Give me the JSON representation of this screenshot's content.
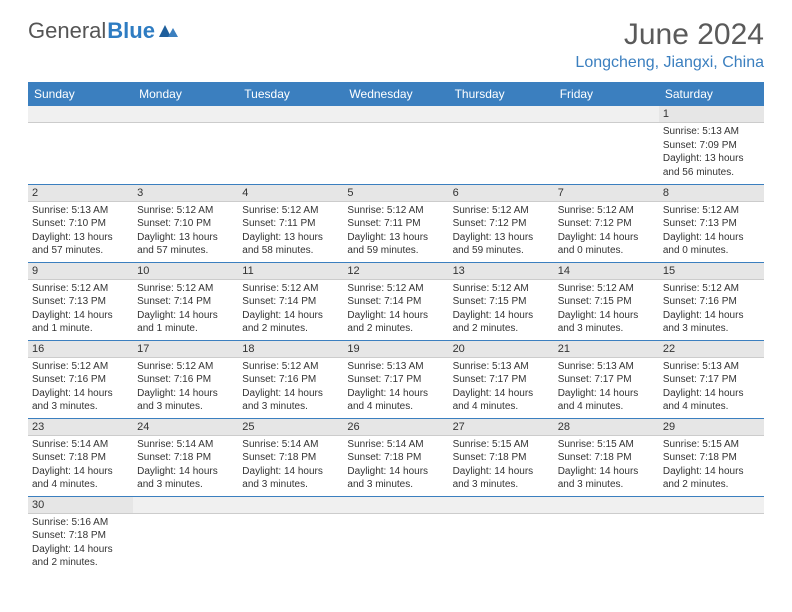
{
  "brand": {
    "part1": "General",
    "part2": "Blue"
  },
  "header": {
    "month_title": "June 2024",
    "location": "Longcheng, Jiangxi, China"
  },
  "colors": {
    "accent": "#3b7fbf",
    "header_text": "#ffffff",
    "daynum_bg": "#e6e6e6",
    "border": "#3b7fbf",
    "title_color": "#5a5a5a",
    "body_text": "#333333"
  },
  "day_headers": [
    "Sunday",
    "Monday",
    "Tuesday",
    "Wednesday",
    "Thursday",
    "Friday",
    "Saturday"
  ],
  "weeks": [
    [
      null,
      null,
      null,
      null,
      null,
      null,
      {
        "n": "1",
        "sr": "Sunrise: 5:13 AM",
        "ss": "Sunset: 7:09 PM",
        "dl": "Daylight: 13 hours and 56 minutes."
      }
    ],
    [
      {
        "n": "2",
        "sr": "Sunrise: 5:13 AM",
        "ss": "Sunset: 7:10 PM",
        "dl": "Daylight: 13 hours and 57 minutes."
      },
      {
        "n": "3",
        "sr": "Sunrise: 5:12 AM",
        "ss": "Sunset: 7:10 PM",
        "dl": "Daylight: 13 hours and 57 minutes."
      },
      {
        "n": "4",
        "sr": "Sunrise: 5:12 AM",
        "ss": "Sunset: 7:11 PM",
        "dl": "Daylight: 13 hours and 58 minutes."
      },
      {
        "n": "5",
        "sr": "Sunrise: 5:12 AM",
        "ss": "Sunset: 7:11 PM",
        "dl": "Daylight: 13 hours and 59 minutes."
      },
      {
        "n": "6",
        "sr": "Sunrise: 5:12 AM",
        "ss": "Sunset: 7:12 PM",
        "dl": "Daylight: 13 hours and 59 minutes."
      },
      {
        "n": "7",
        "sr": "Sunrise: 5:12 AM",
        "ss": "Sunset: 7:12 PM",
        "dl": "Daylight: 14 hours and 0 minutes."
      },
      {
        "n": "8",
        "sr": "Sunrise: 5:12 AM",
        "ss": "Sunset: 7:13 PM",
        "dl": "Daylight: 14 hours and 0 minutes."
      }
    ],
    [
      {
        "n": "9",
        "sr": "Sunrise: 5:12 AM",
        "ss": "Sunset: 7:13 PM",
        "dl": "Daylight: 14 hours and 1 minute."
      },
      {
        "n": "10",
        "sr": "Sunrise: 5:12 AM",
        "ss": "Sunset: 7:14 PM",
        "dl": "Daylight: 14 hours and 1 minute."
      },
      {
        "n": "11",
        "sr": "Sunrise: 5:12 AM",
        "ss": "Sunset: 7:14 PM",
        "dl": "Daylight: 14 hours and 2 minutes."
      },
      {
        "n": "12",
        "sr": "Sunrise: 5:12 AM",
        "ss": "Sunset: 7:14 PM",
        "dl": "Daylight: 14 hours and 2 minutes."
      },
      {
        "n": "13",
        "sr": "Sunrise: 5:12 AM",
        "ss": "Sunset: 7:15 PM",
        "dl": "Daylight: 14 hours and 2 minutes."
      },
      {
        "n": "14",
        "sr": "Sunrise: 5:12 AM",
        "ss": "Sunset: 7:15 PM",
        "dl": "Daylight: 14 hours and 3 minutes."
      },
      {
        "n": "15",
        "sr": "Sunrise: 5:12 AM",
        "ss": "Sunset: 7:16 PM",
        "dl": "Daylight: 14 hours and 3 minutes."
      }
    ],
    [
      {
        "n": "16",
        "sr": "Sunrise: 5:12 AM",
        "ss": "Sunset: 7:16 PM",
        "dl": "Daylight: 14 hours and 3 minutes."
      },
      {
        "n": "17",
        "sr": "Sunrise: 5:12 AM",
        "ss": "Sunset: 7:16 PM",
        "dl": "Daylight: 14 hours and 3 minutes."
      },
      {
        "n": "18",
        "sr": "Sunrise: 5:12 AM",
        "ss": "Sunset: 7:16 PM",
        "dl": "Daylight: 14 hours and 3 minutes."
      },
      {
        "n": "19",
        "sr": "Sunrise: 5:13 AM",
        "ss": "Sunset: 7:17 PM",
        "dl": "Daylight: 14 hours and 4 minutes."
      },
      {
        "n": "20",
        "sr": "Sunrise: 5:13 AM",
        "ss": "Sunset: 7:17 PM",
        "dl": "Daylight: 14 hours and 4 minutes."
      },
      {
        "n": "21",
        "sr": "Sunrise: 5:13 AM",
        "ss": "Sunset: 7:17 PM",
        "dl": "Daylight: 14 hours and 4 minutes."
      },
      {
        "n": "22",
        "sr": "Sunrise: 5:13 AM",
        "ss": "Sunset: 7:17 PM",
        "dl": "Daylight: 14 hours and 4 minutes."
      }
    ],
    [
      {
        "n": "23",
        "sr": "Sunrise: 5:14 AM",
        "ss": "Sunset: 7:18 PM",
        "dl": "Daylight: 14 hours and 4 minutes."
      },
      {
        "n": "24",
        "sr": "Sunrise: 5:14 AM",
        "ss": "Sunset: 7:18 PM",
        "dl": "Daylight: 14 hours and 3 minutes."
      },
      {
        "n": "25",
        "sr": "Sunrise: 5:14 AM",
        "ss": "Sunset: 7:18 PM",
        "dl": "Daylight: 14 hours and 3 minutes."
      },
      {
        "n": "26",
        "sr": "Sunrise: 5:14 AM",
        "ss": "Sunset: 7:18 PM",
        "dl": "Daylight: 14 hours and 3 minutes."
      },
      {
        "n": "27",
        "sr": "Sunrise: 5:15 AM",
        "ss": "Sunset: 7:18 PM",
        "dl": "Daylight: 14 hours and 3 minutes."
      },
      {
        "n": "28",
        "sr": "Sunrise: 5:15 AM",
        "ss": "Sunset: 7:18 PM",
        "dl": "Daylight: 14 hours and 3 minutes."
      },
      {
        "n": "29",
        "sr": "Sunrise: 5:15 AM",
        "ss": "Sunset: 7:18 PM",
        "dl": "Daylight: 14 hours and 2 minutes."
      }
    ],
    [
      {
        "n": "30",
        "sr": "Sunrise: 5:16 AM",
        "ss": "Sunset: 7:18 PM",
        "dl": "Daylight: 14 hours and 2 minutes."
      },
      null,
      null,
      null,
      null,
      null,
      null
    ]
  ]
}
